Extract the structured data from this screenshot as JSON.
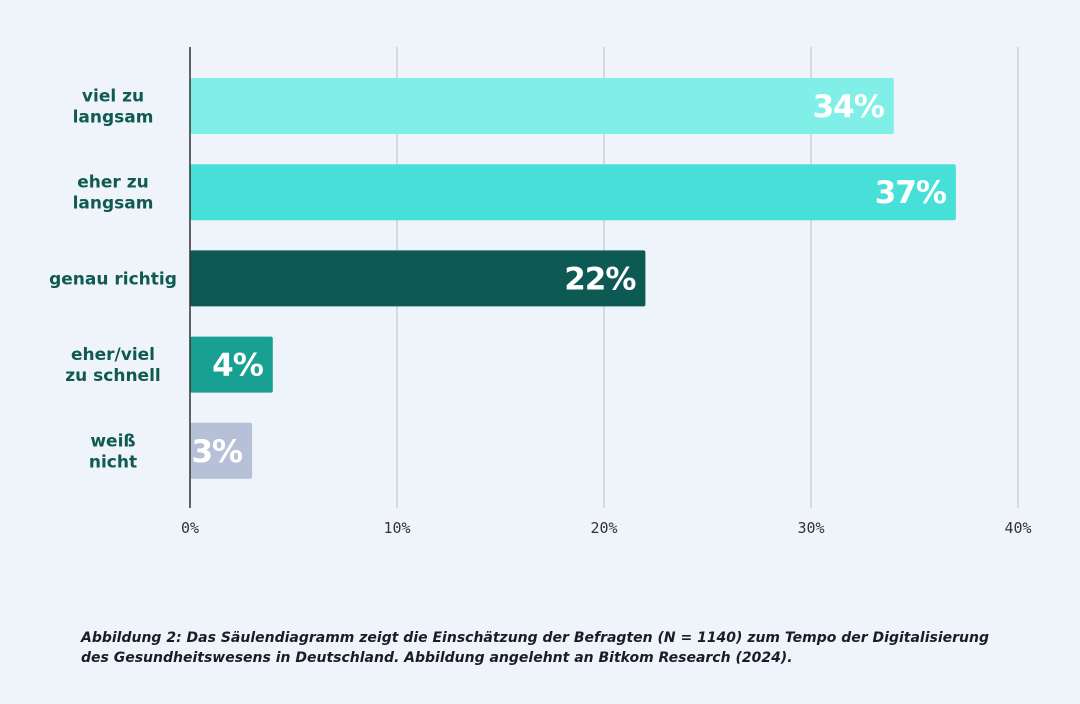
{
  "chart_data": {
    "type": "bar",
    "orientation": "horizontal",
    "categories": [
      [
        "viel zu",
        "langsam"
      ],
      [
        "eher zu",
        "langsam"
      ],
      [
        "genau richtig"
      ],
      [
        "eher/viel",
        "zu schnell"
      ],
      [
        "weiß",
        "nicht"
      ]
    ],
    "values": [
      34,
      37,
      22,
      4,
      3
    ],
    "value_labels": [
      "34%",
      "37%",
      "22%",
      "4%",
      "3%"
    ],
    "colors": [
      "#80efe8",
      "#47e0d8",
      "#0d5a55",
      "#18a093",
      "#b6c0d6"
    ],
    "xlim": [
      0,
      40
    ],
    "xticks": [
      0,
      10,
      20,
      30,
      40
    ],
    "xtick_labels": [
      "0%",
      "10%",
      "20%",
      "30%",
      "40%"
    ],
    "grid": true,
    "title": "",
    "xlabel": "",
    "ylabel": ""
  },
  "caption": "Abbildung 2: Das Säulendiagramm zeigt die Einschätzung der Befragten (N = 1140) zum Tempo der Digitalisierung des Gesundheitswesens in Deutschland. Abbildung angelehnt an Bitkom Research (2024)."
}
